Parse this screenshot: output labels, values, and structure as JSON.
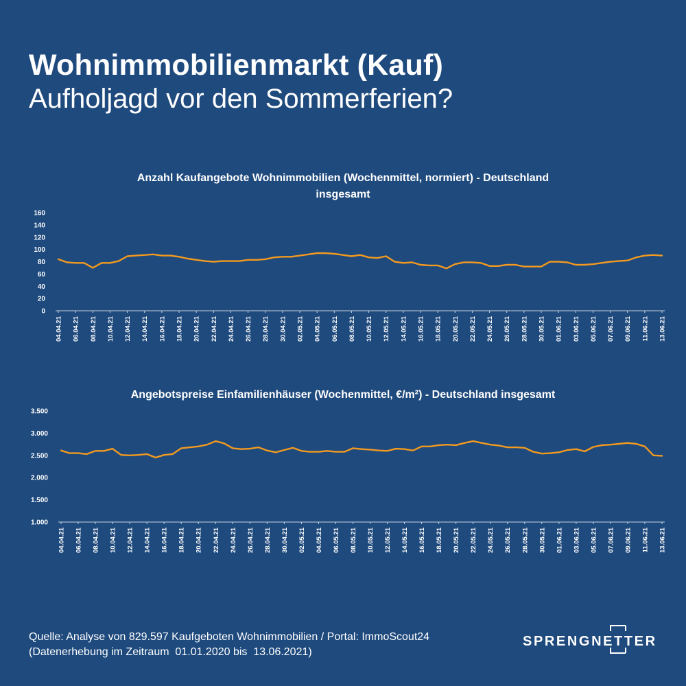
{
  "header": {
    "title": "Wohnimmobilienmarkt (Kauf)",
    "subtitle": "Aufholjagd vor den Sommerferien?"
  },
  "chart_data": [
    {
      "type": "line",
      "title_line1": "Anzahl Kaufangebote Wohnimmobilien (Wochenmittel, normiert) - Deutschland",
      "title_line2": "insgesamt",
      "ylim": [
        0,
        160
      ],
      "yticks": [
        "0",
        "20",
        "40",
        "60",
        "80",
        "100",
        "120",
        "140",
        "160"
      ],
      "ytick_values": [
        0,
        20,
        40,
        60,
        80,
        100,
        120,
        140,
        160
      ],
      "xtick_labels": [
        "04.04.21",
        "06.04.21",
        "08.04.21",
        "10.04.21",
        "12.04.21",
        "14.04.21",
        "16.04.21",
        "18.04.21",
        "20.04.21",
        "22.04.21",
        "24.04.21",
        "26.04.21",
        "28.04.21",
        "30.04.21",
        "02.05.21",
        "04.05.21",
        "06.05.21",
        "08.05.21",
        "10.05.21",
        "12.05.21",
        "14.05.21",
        "16.05.21",
        "18.05.21",
        "20.05.21",
        "22.05.21",
        "24.05.21",
        "26.05.21",
        "28.05.21",
        "30.05.21",
        "01.06.21",
        "03.06.21",
        "05.06.21",
        "07.06.21",
        "09.06.21",
        "11.06.21",
        "13.06.21"
      ],
      "values": [
        84,
        79,
        78,
        78,
        70,
        78,
        78,
        81,
        89,
        90,
        91,
        92,
        90,
        90,
        88,
        85,
        83,
        81,
        80,
        81,
        81,
        81,
        83,
        83,
        84,
        87,
        88,
        88,
        90,
        92,
        94,
        94,
        93,
        91,
        89,
        91,
        87,
        86,
        89,
        80,
        78,
        79,
        75,
        74,
        74,
        69,
        76,
        79,
        79,
        78,
        73,
        73,
        75,
        75,
        72,
        72,
        72,
        80,
        80,
        79,
        75,
        75,
        76,
        78,
        80,
        81,
        82,
        87,
        90,
        91,
        90
      ],
      "line_color": "#f39a1f",
      "grid": false
    },
    {
      "type": "line",
      "title": "Angebotspreise Einfamilienhäuser (Wochenmittel, €/m²) - Deutschland insgesamt",
      "ylim": [
        1000,
        3500
      ],
      "yticks": [
        "1.000",
        "1.500",
        "2.000",
        "2.500",
        "3.000",
        "3.500"
      ],
      "ytick_values": [
        1000,
        1500,
        2000,
        2500,
        3000,
        3500
      ],
      "xtick_labels": [
        "04.04.21",
        "06.04.21",
        "08.04.21",
        "10.04.21",
        "12.04.21",
        "14.04.21",
        "16.04.21",
        "18.04.21",
        "20.04.21",
        "22.04.21",
        "24.04.21",
        "26.04.21",
        "28.04.21",
        "30.04.21",
        "02.05.21",
        "04.05.21",
        "06.05.21",
        "08.05.21",
        "10.05.21",
        "12.05.21",
        "14.05.21",
        "16.05.21",
        "18.05.21",
        "20.05.21",
        "22.05.21",
        "24.05.21",
        "26.05.21",
        "28.05.21",
        "30.05.21",
        "01.06.21",
        "03.06.21",
        "05.06.21",
        "07.06.21",
        "09.06.21",
        "11.06.21",
        "13.06.21"
      ],
      "values": [
        2610,
        2550,
        2550,
        2530,
        2600,
        2600,
        2650,
        2510,
        2500,
        2510,
        2530,
        2450,
        2510,
        2530,
        2660,
        2680,
        2700,
        2740,
        2820,
        2770,
        2660,
        2640,
        2650,
        2680,
        2610,
        2570,
        2620,
        2670,
        2600,
        2580,
        2580,
        2600,
        2580,
        2580,
        2660,
        2640,
        2630,
        2610,
        2600,
        2650,
        2640,
        2610,
        2700,
        2700,
        2730,
        2740,
        2730,
        2780,
        2820,
        2780,
        2740,
        2720,
        2680,
        2680,
        2670,
        2580,
        2540,
        2550,
        2570,
        2620,
        2640,
        2590,
        2690,
        2730,
        2740,
        2760,
        2780,
        2760,
        2700,
        2500,
        2490
      ],
      "line_color": "#f39a1f",
      "grid": false
    }
  ],
  "footer": {
    "source_line1": "Quelle: Analyse von 829.597 Kaufgeboten Wohnimmobilien / Portal: ImmoScout24",
    "source_line2": "(Datenerhebung im Zeitraum  01.01.2020 bis  13.06.2021)",
    "logo_text": "SPRENGNETTER"
  }
}
